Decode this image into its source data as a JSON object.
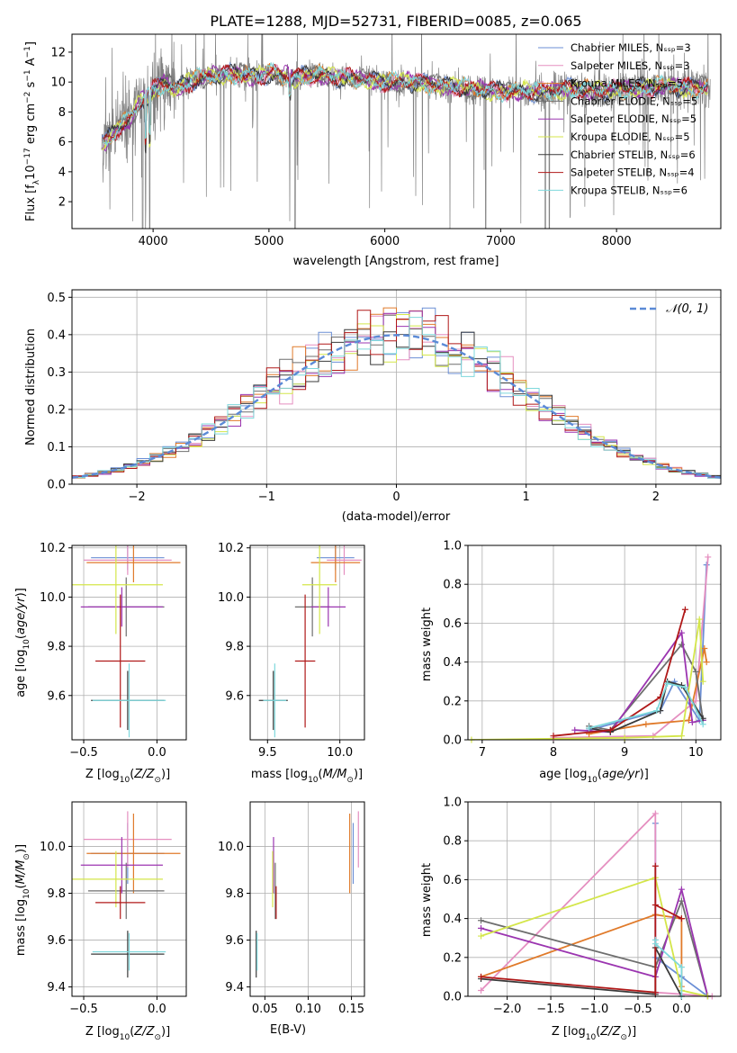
{
  "colors": [
    "#6b8fd6",
    "#e58fc0",
    "#e07a2a",
    "#6e6e6e",
    "#9b35b0",
    "#d4e64a",
    "#3a3a3a",
    "#b01818",
    "#7ed8dc"
  ],
  "chart_data": [
    {
      "id": "spectrum",
      "type": "line",
      "title": "PLATE=1288, MJD=52731, FIBERID=0085, z=0.065",
      "xlabel": "wavelength [Angstrom, rest frame]",
      "ylabel": "Flux [fλ10⁻¹⁷ erg cm⁻² s⁻¹ A⁻¹]",
      "xlim": [
        3300,
        8900
      ],
      "ylim": [
        0.2,
        13.2
      ],
      "xticks": [
        4000,
        5000,
        6000,
        7000,
        8000
      ],
      "yticks": [
        2,
        4,
        6,
        8,
        10,
        12
      ],
      "legend_position": "top-right",
      "legend": [
        "Chabrier MILES, Nₛₛₚ=3",
        "Salpeter MILES, Nₛₛₚ=3",
        "Kroupa MILES, Nₛₛₚ=5",
        "Chabrier ELODIE, Nₛₛₚ=5",
        "Salpeter ELODIE, Nₛₛₚ=5",
        "Kroupa ELODIE, Nₛₛₚ=5",
        "Chabrier STELIB, Nₛₛₚ=6",
        "Salpeter STELIB, Nₛₛₚ=4",
        "Kroupa STELIB, Nₛₛₚ=6"
      ],
      "data_series": {
        "x": [
          3600,
          3700,
          3800,
          3900,
          4000,
          4100,
          4200,
          4300,
          4400,
          4500,
          4600,
          4700,
          4800,
          4900,
          5000,
          5200,
          5400,
          5600,
          5800,
          6000,
          6200,
          6400,
          6600,
          6800,
          7000,
          7200,
          7400,
          7600,
          7800,
          8000,
          8200,
          8400,
          8600,
          8800
        ],
        "y": [
          6.0,
          7.0,
          7.5,
          8.8,
          9.4,
          10.0,
          9.5,
          10.0,
          10.2,
          10.4,
          10.5,
          10.6,
          10.5,
          10.3,
          10.6,
          10.3,
          10.5,
          10.3,
          10.2,
          10.0,
          10.0,
          9.9,
          9.7,
          9.5,
          9.4,
          9.4,
          9.3,
          9.6,
          9.4,
          9.5,
          9.6,
          9.7,
          9.6,
          9.7
        ]
      }
    },
    {
      "id": "residuals",
      "type": "bar",
      "xlabel": "(data-model)/error",
      "ylabel": "Normed distribution",
      "xlim": [
        -2.5,
        2.5
      ],
      "ylim": [
        0,
        0.52
      ],
      "xticks": [
        -2,
        -1,
        0,
        1,
        2
      ],
      "yticks": [
        0.0,
        0.1,
        0.2,
        0.3,
        0.4,
        0.5
      ],
      "legend": [
        "𝒩(0, 1)"
      ],
      "legend_position": "top-right"
    },
    {
      "id": "age-vs-Z",
      "type": "scatter",
      "xlabel": "Z [log₁₀(Z/Z⊙)]",
      "ylabel": "age  [log₁₀(age/yr)]",
      "xlim": [
        -0.58,
        0.2
      ],
      "ylim": [
        9.42,
        10.21
      ],
      "xticks": [
        -0.5,
        0.0
      ],
      "yticks": [
        9.6,
        9.8,
        10.0,
        10.2
      ],
      "points": [
        {
          "x": -0.2,
          "y": 10.16,
          "xerr": 0.25,
          "yerr": 0.05
        },
        {
          "x": -0.2,
          "y": 10.15,
          "xerr": 0.3,
          "yerr": 0.06
        },
        {
          "x": -0.16,
          "y": 10.14,
          "xerr": 0.32,
          "yerr": 0.08
        },
        {
          "x": -0.21,
          "y": 9.96,
          "xerr": 0.26,
          "yerr": 0.12
        },
        {
          "x": -0.24,
          "y": 9.96,
          "xerr": 0.28,
          "yerr": 0.08
        },
        {
          "x": -0.28,
          "y": 10.05,
          "xerr": 0.32,
          "yerr": 0.2
        },
        {
          "x": -0.2,
          "y": 9.58,
          "xerr": 0.25,
          "yerr": 0.12
        },
        {
          "x": -0.25,
          "y": 9.74,
          "xerr": 0.17,
          "yerr": 0.27
        },
        {
          "x": -0.19,
          "y": 9.58,
          "xerr": 0.25,
          "yerr": 0.15
        }
      ]
    },
    {
      "id": "age-vs-mass",
      "type": "scatter",
      "xlabel": "mass [log₁₀(M/M⊙)]",
      "ylabel": "",
      "xlim": [
        9.38,
        10.17
      ],
      "ylim": [
        9.42,
        10.21
      ],
      "xticks": [
        9.5,
        10.0
      ],
      "yticks": [
        9.6,
        9.8,
        10.0,
        10.2
      ],
      "points": [
        {
          "x": 9.97,
          "y": 10.16,
          "xerr": 0.13,
          "yerr": 0.05
        },
        {
          "x": 10.03,
          "y": 10.15,
          "xerr": 0.12,
          "yerr": 0.06
        },
        {
          "x": 9.97,
          "y": 10.14,
          "xerr": 0.17,
          "yerr": 0.08
        },
        {
          "x": 9.81,
          "y": 9.96,
          "xerr": 0.12,
          "yerr": 0.12
        },
        {
          "x": 9.92,
          "y": 9.96,
          "xerr": 0.12,
          "yerr": 0.08
        },
        {
          "x": 9.86,
          "y": 10.05,
          "xerr": 0.12,
          "yerr": 0.2
        },
        {
          "x": 9.54,
          "y": 9.58,
          "xerr": 0.1,
          "yerr": 0.12
        },
        {
          "x": 9.76,
          "y": 9.74,
          "xerr": 0.07,
          "yerr": 0.27
        },
        {
          "x": 9.55,
          "y": 9.58,
          "xerr": 0.08,
          "yerr": 0.15
        }
      ]
    },
    {
      "id": "massweight-vs-age",
      "type": "line",
      "xlabel": "age  [log₁₀(age/yr)]",
      "ylabel": "mass weight",
      "xlim": [
        6.8,
        10.35
      ],
      "ylim": [
        0,
        1
      ],
      "xticks": [
        7,
        8,
        9,
        10
      ],
      "yticks": [
        0.0,
        0.2,
        0.4,
        0.6,
        0.8,
        1.0
      ]
    },
    {
      "id": "mass-vs-Z",
      "type": "scatter",
      "xlabel": "Z [log₁₀(Z/Z⊙)]",
      "ylabel": "mass [log₁₀(M/M⊙)]",
      "xlim": [
        -0.58,
        0.2
      ],
      "ylim": [
        9.36,
        10.19
      ],
      "xticks": [
        -0.5,
        0.0
      ],
      "yticks": [
        9.4,
        9.6,
        9.8,
        10.0
      ],
      "points": [
        {
          "x": -0.2,
          "y": 9.97,
          "xerr": 0.25,
          "yerr": 0.13
        },
        {
          "x": -0.2,
          "y": 10.03,
          "xerr": 0.3,
          "yerr": 0.12
        },
        {
          "x": -0.16,
          "y": 9.97,
          "xerr": 0.32,
          "yerr": 0.17
        },
        {
          "x": -0.21,
          "y": 9.81,
          "xerr": 0.26,
          "yerr": 0.12
        },
        {
          "x": -0.24,
          "y": 9.92,
          "xerr": 0.28,
          "yerr": 0.12
        },
        {
          "x": -0.28,
          "y": 9.86,
          "xerr": 0.32,
          "yerr": 0.12
        },
        {
          "x": -0.2,
          "y": 9.54,
          "xerr": 0.25,
          "yerr": 0.1
        },
        {
          "x": -0.25,
          "y": 9.76,
          "xerr": 0.17,
          "yerr": 0.07
        },
        {
          "x": -0.19,
          "y": 9.55,
          "xerr": 0.25,
          "yerr": 0.08
        }
      ]
    },
    {
      "id": "mass-vs-EBV",
      "type": "scatter",
      "xlabel": "E(B-V)",
      "ylabel": "",
      "xlim": [
        0.033,
        0.165
      ],
      "ylim": [
        9.36,
        10.19
      ],
      "xticks": [
        0.05,
        0.1,
        0.15
      ],
      "yticks": [
        9.4,
        9.6,
        9.8,
        10.0
      ],
      "points": [
        {
          "x": 0.152,
          "y": 9.97,
          "yerr": 0.13
        },
        {
          "x": 0.158,
          "y": 10.03,
          "yerr": 0.12
        },
        {
          "x": 0.148,
          "y": 9.97,
          "yerr": 0.17
        },
        {
          "x": 0.062,
          "y": 9.81,
          "yerr": 0.12
        },
        {
          "x": 0.06,
          "y": 9.92,
          "yerr": 0.12
        },
        {
          "x": 0.059,
          "y": 9.86,
          "yerr": 0.12
        },
        {
          "x": 0.04,
          "y": 9.54,
          "yerr": 0.1
        },
        {
          "x": 0.063,
          "y": 9.76,
          "yerr": 0.07
        },
        {
          "x": 0.041,
          "y": 9.55,
          "yerr": 0.08
        }
      ]
    },
    {
      "id": "massweight-vs-Z",
      "type": "line",
      "xlabel": "Z [log₁₀(Z/Z⊙)]",
      "ylabel": "mass weight",
      "xlim": [
        -2.45,
        0.45
      ],
      "ylim": [
        0,
        1
      ],
      "xticks": [
        -2.0,
        -1.5,
        -1.0,
        -0.5,
        0.0
      ],
      "yticks": [
        0.0,
        0.2,
        0.4,
        0.6,
        0.8,
        1.0
      ]
    }
  ]
}
